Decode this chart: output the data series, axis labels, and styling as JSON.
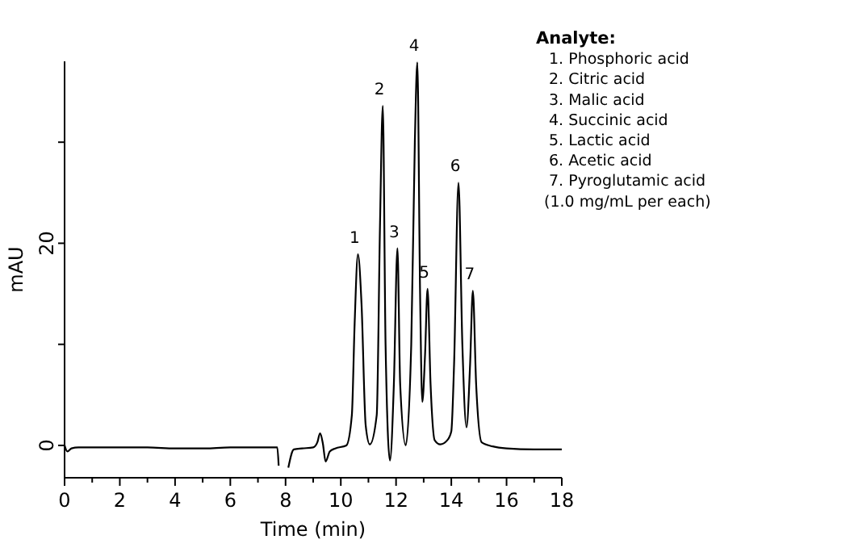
{
  "chart_data": {
    "type": "line",
    "xlabel": "Time (min)",
    "ylabel": "mAU",
    "x": [
      0,
      0.1,
      0.25,
      0.5,
      1,
      2,
      3,
      4,
      5,
      6,
      7,
      7.7,
      7.75,
      7.78,
      8.05,
      8.1,
      8.3,
      8.6,
      9.0,
      9.15,
      9.25,
      9.35,
      9.45,
      9.6,
      9.8,
      10.2,
      10.4,
      10.5,
      10.62,
      10.75,
      10.9,
      11.05,
      11.3,
      11.42,
      11.52,
      11.62,
      11.78,
      11.92,
      12.05,
      12.15,
      12.35,
      12.55,
      12.68,
      12.77,
      12.87,
      12.95,
      13.05,
      13.14,
      13.25,
      13.4,
      13.6,
      13.85,
      14.0,
      14.1,
      14.26,
      14.4,
      14.55,
      14.68,
      14.78,
      14.9,
      15.1,
      15.5,
      16,
      17,
      18
    ],
    "series": [
      {
        "color": "#000000",
        "values": [
          0,
          -0.6,
          -0.3,
          -0.2,
          -0.2,
          -0.2,
          -0.2,
          -0.3,
          -0.3,
          -0.2,
          -0.2,
          -0.2,
          -2.0,
          null,
          null,
          -2.2,
          -0.4,
          -0.3,
          -0.2,
          0.3,
          1.2,
          0.2,
          -1.6,
          -0.6,
          -0.3,
          0,
          3,
          12,
          18.9,
          14,
          2,
          0.1,
          3,
          22,
          33.6,
          10,
          -1.5,
          6,
          19.5,
          6,
          0,
          10,
          30,
          37.9,
          15,
          4.3,
          9,
          15.5,
          6,
          0.5,
          0.1,
          0.5,
          1.4,
          8,
          26,
          10,
          1.8,
          8,
          15.3,
          6,
          0.3,
          -0.1,
          -0.3,
          -0.4,
          -0.4
        ]
      }
    ],
    "xlim": [
      0,
      18
    ],
    "xticks": [
      0,
      2,
      4,
      6,
      8,
      10,
      12,
      14,
      16,
      18
    ],
    "ylim": [
      -3.2,
      38
    ],
    "yticks": [
      0,
      {
        "value": 10,
        "label": null
      },
      20,
      {
        "value": 30,
        "label": null
      }
    ],
    "grid": false,
    "annotations": [
      {
        "text": "1",
        "x": 10.62,
        "y": 18.9
      },
      {
        "text": "2",
        "x": 11.52,
        "y": 33.6
      },
      {
        "text": "3",
        "x": 12.05,
        "y": 19.5
      },
      {
        "text": "4",
        "x": 12.77,
        "y": 37.9
      },
      {
        "text": "5",
        "x": 13.14,
        "y": 15.5
      },
      {
        "text": "6",
        "x": 14.26,
        "y": 26.0
      },
      {
        "text": "7",
        "x": 14.78,
        "y": 15.3
      },
      "Analyte:",
      "1. Phosphoric acid",
      "2. Citric acid",
      "3. Malic acid",
      "4. Succinic acid",
      "5. Lactic acid",
      "6. Acetic acid",
      "7. Pyroglutamic acid",
      "(1.0 mg/mL per each)"
    ]
  }
}
